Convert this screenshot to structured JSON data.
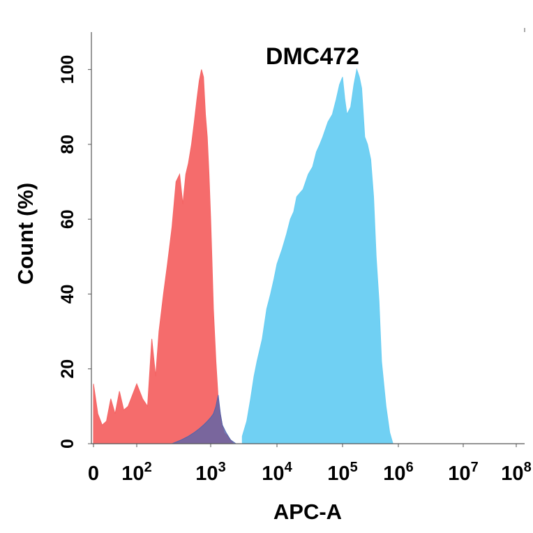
{
  "chart_data": {
    "type": "area",
    "title": "DMC472",
    "xlabel": "APC-A",
    "ylabel": "Count  (%)",
    "x_scale": "biexponential",
    "xlim": [
      0,
      100000000
    ],
    "ylim": [
      0,
      110
    ],
    "x_ticks": [
      {
        "value": 0,
        "base": "0",
        "exp": ""
      },
      {
        "value": 100,
        "base": "10",
        "exp": "2"
      },
      {
        "value": 1000,
        "base": "10",
        "exp": "3"
      },
      {
        "value": 10000,
        "base": "10",
        "exp": "4"
      },
      {
        "value": 100000,
        "base": "10",
        "exp": "5"
      },
      {
        "value": 1000000,
        "base": "10",
        "exp": "6"
      },
      {
        "value": 10000000,
        "base": "10",
        "exp": "7"
      },
      {
        "value": 100000000,
        "base": "10",
        "exp": "8"
      }
    ],
    "y_ticks": [
      0,
      20,
      40,
      60,
      80,
      100
    ],
    "series": [
      {
        "color": "#f46464",
        "x": [
          0,
          10,
          20,
          30,
          40,
          50,
          60,
          70,
          80,
          100,
          120,
          140,
          160,
          180,
          200,
          230,
          260,
          300,
          340,
          380,
          420,
          460,
          500,
          550,
          600,
          650,
          700,
          750,
          800,
          850,
          900,
          950,
          1000,
          1050,
          1100,
          1200,
          1300,
          1400,
          1500,
          1600,
          1800,
          2000,
          2200
        ],
        "y": [
          16,
          8,
          5,
          6,
          12,
          8,
          14,
          9,
          10,
          16,
          12,
          10,
          28,
          18,
          30,
          40,
          48,
          58,
          70,
          72,
          64,
          72,
          75,
          80,
          86,
          92,
          97,
          100,
          98,
          88,
          82,
          72,
          60,
          48,
          36,
          22,
          12,
          8,
          5,
          3,
          2,
          1,
          0
        ]
      },
      {
        "color": "#68cdf2",
        "x": [
          3000,
          3500,
          4000,
          4500,
          5000,
          6000,
          7000,
          8000,
          9000,
          10000,
          12000,
          14000,
          16000,
          18000,
          20000,
          25000,
          30000,
          35000,
          40000,
          45000,
          50000,
          60000,
          70000,
          80000,
          90000,
          100000,
          110000,
          120000,
          140000,
          160000,
          180000,
          200000,
          220000,
          250000,
          280000,
          320000,
          360000,
          400000,
          450000,
          500000,
          600000,
          700000,
          800000
        ],
        "y": [
          2,
          6,
          12,
          18,
          22,
          28,
          36,
          40,
          44,
          48,
          52,
          56,
          60,
          62,
          66,
          68,
          72,
          74,
          78,
          80,
          82,
          86,
          88,
          92,
          96,
          98,
          92,
          88,
          90,
          96,
          100,
          98,
          95,
          82,
          80,
          76,
          66,
          50,
          38,
          22,
          10,
          3,
          0
        ]
      },
      {
        "color": "#4f64ad",
        "x": [
          300,
          400,
          500,
          600,
          700,
          800,
          900,
          1000,
          1100,
          1200,
          1300,
          1400,
          1500,
          1700,
          2000,
          2400
        ],
        "y": [
          0,
          1,
          2,
          3,
          4,
          5,
          6,
          7,
          8,
          10,
          13,
          8,
          5,
          3,
          1,
          0
        ]
      }
    ]
  }
}
